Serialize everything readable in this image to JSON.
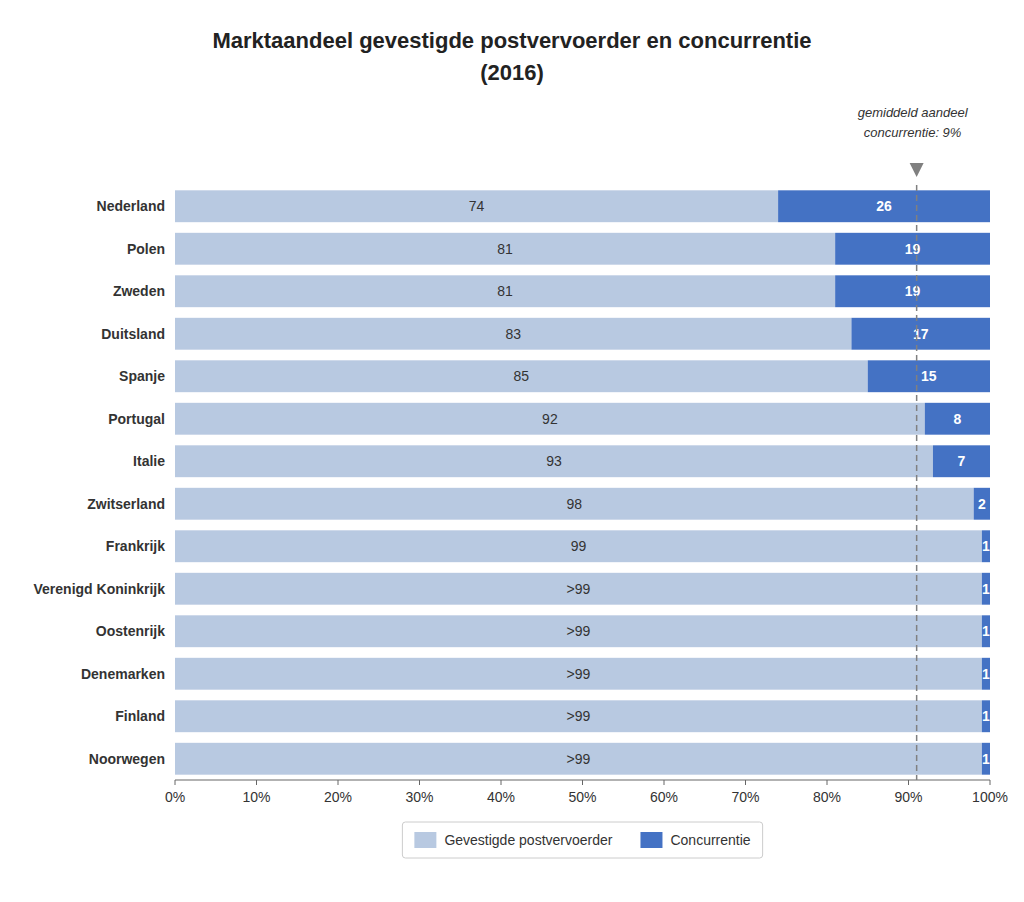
{
  "chart_data": {
    "type": "bar",
    "orientation": "horizontal",
    "stacked": true,
    "title": "Marktaandeel gevestigde postvervoerder en concurrentie",
    "subtitle": "(2016)",
    "categories": [
      "Nederland",
      "Polen",
      "Zweden",
      "Duitsland",
      "Spanje",
      "Portugal",
      "Italie",
      "Zwitserland",
      "Frankrijk",
      "Verenigd Koninkrijk",
      "Oostenrijk",
      "Denemarken",
      "Finland",
      "Noorwegen"
    ],
    "series": [
      {
        "name": "Gevestigde postvervoerder",
        "color": "#b8c9e1",
        "values": [
          74,
          81,
          81,
          83,
          85,
          92,
          93,
          98,
          99,
          99,
          99,
          99,
          99,
          99
        ],
        "value_labels": [
          "74",
          "81",
          "81",
          "83",
          "85",
          "92",
          "93",
          "98",
          "99",
          ">99",
          ">99",
          ">99",
          ">99",
          ">99"
        ]
      },
      {
        "name": "Concurrentie",
        "color": "#4472c4",
        "values": [
          26,
          19,
          19,
          17,
          15,
          8,
          7,
          2,
          1,
          1,
          1,
          1,
          1,
          1
        ]
      }
    ],
    "xlim": [
      0,
      100
    ],
    "xticks": [
      {
        "value": 0,
        "label": "0%"
      },
      {
        "value": 10,
        "label": "10%"
      },
      {
        "value": 20,
        "label": "20%"
      },
      {
        "value": 30,
        "label": "30%"
      },
      {
        "value": 40,
        "label": "40%"
      },
      {
        "value": 50,
        "label": "50%"
      },
      {
        "value": 60,
        "label": "60%"
      },
      {
        "value": 70,
        "label": "70%"
      },
      {
        "value": 80,
        "label": "80%"
      },
      {
        "value": 90,
        "label": "90%"
      },
      {
        "value": 100,
        "label": "100%"
      }
    ],
    "annotations": [
      {
        "x": 91,
        "lines": [
          "gemiddeld aandeel",
          "concurrentie: 9%"
        ]
      }
    ],
    "data_labels": true,
    "grid": false,
    "legend": "bottom"
  }
}
